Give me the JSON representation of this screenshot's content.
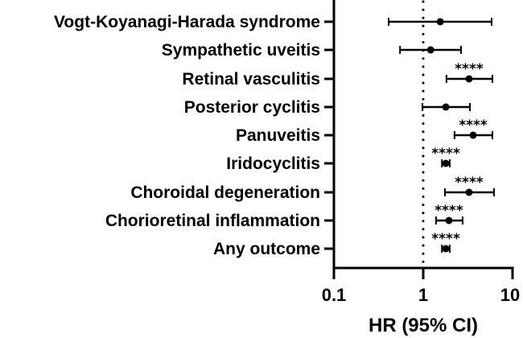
{
  "chart_data": {
    "type": "forest",
    "title": "",
    "xlabel": "HR (95% CI)",
    "ylabel": "",
    "xscale": "log",
    "xlim": [
      0.1,
      10
    ],
    "xticks": [
      "0.1",
      "1",
      "10"
    ],
    "reference_line": 1,
    "categories": [
      "Vogt-Koyanagi-Harada syndrome",
      "Sympathetic uveitis",
      "Retinal vasculitis",
      "Posterior cyclitis",
      "Panuveitis",
      "Iridocyclitis",
      "Choroidal degeneration",
      "Chorioretinal inflammation",
      "Any outcome"
    ],
    "series": [
      {
        "name": "HR",
        "values": [
          1.55,
          1.21,
          3.26,
          1.79,
          3.62,
          1.79,
          3.26,
          1.94,
          1.79
        ],
        "ci_low": [
          0.41,
          0.55,
          1.82,
          0.98,
          2.24,
          1.62,
          1.75,
          1.39,
          1.62
        ],
        "ci_high": [
          5.83,
          2.65,
          5.95,
          3.33,
          5.95,
          1.98,
          6.2,
          2.76,
          1.98
        ],
        "significance": [
          "",
          "",
          "****",
          "",
          "****",
          "****",
          "****",
          "****",
          "****"
        ]
      }
    ],
    "grid": false,
    "legend": null
  },
  "axis": {
    "x_label": "HR (95% CI)",
    "tick_labels": [
      "0.1",
      "1",
      "10"
    ]
  },
  "rows": [
    {
      "label": "Vogt-Koyanagi-Harada syndrome",
      "stars": ""
    },
    {
      "label": "Sympathetic uveitis",
      "stars": ""
    },
    {
      "label": "Retinal vasculitis",
      "stars": "****"
    },
    {
      "label": "Posterior cyclitis",
      "stars": ""
    },
    {
      "label": "Panuveitis",
      "stars": "****"
    },
    {
      "label": "Iridocyclitis",
      "stars": "****"
    },
    {
      "label": "Choroidal degeneration",
      "stars": "****"
    },
    {
      "label": "Chorioretinal inflammation",
      "stars": "****"
    },
    {
      "label": "Any outcome",
      "stars": "****"
    }
  ],
  "colors": {
    "ink": "#000000",
    "background": "#ffffff"
  }
}
